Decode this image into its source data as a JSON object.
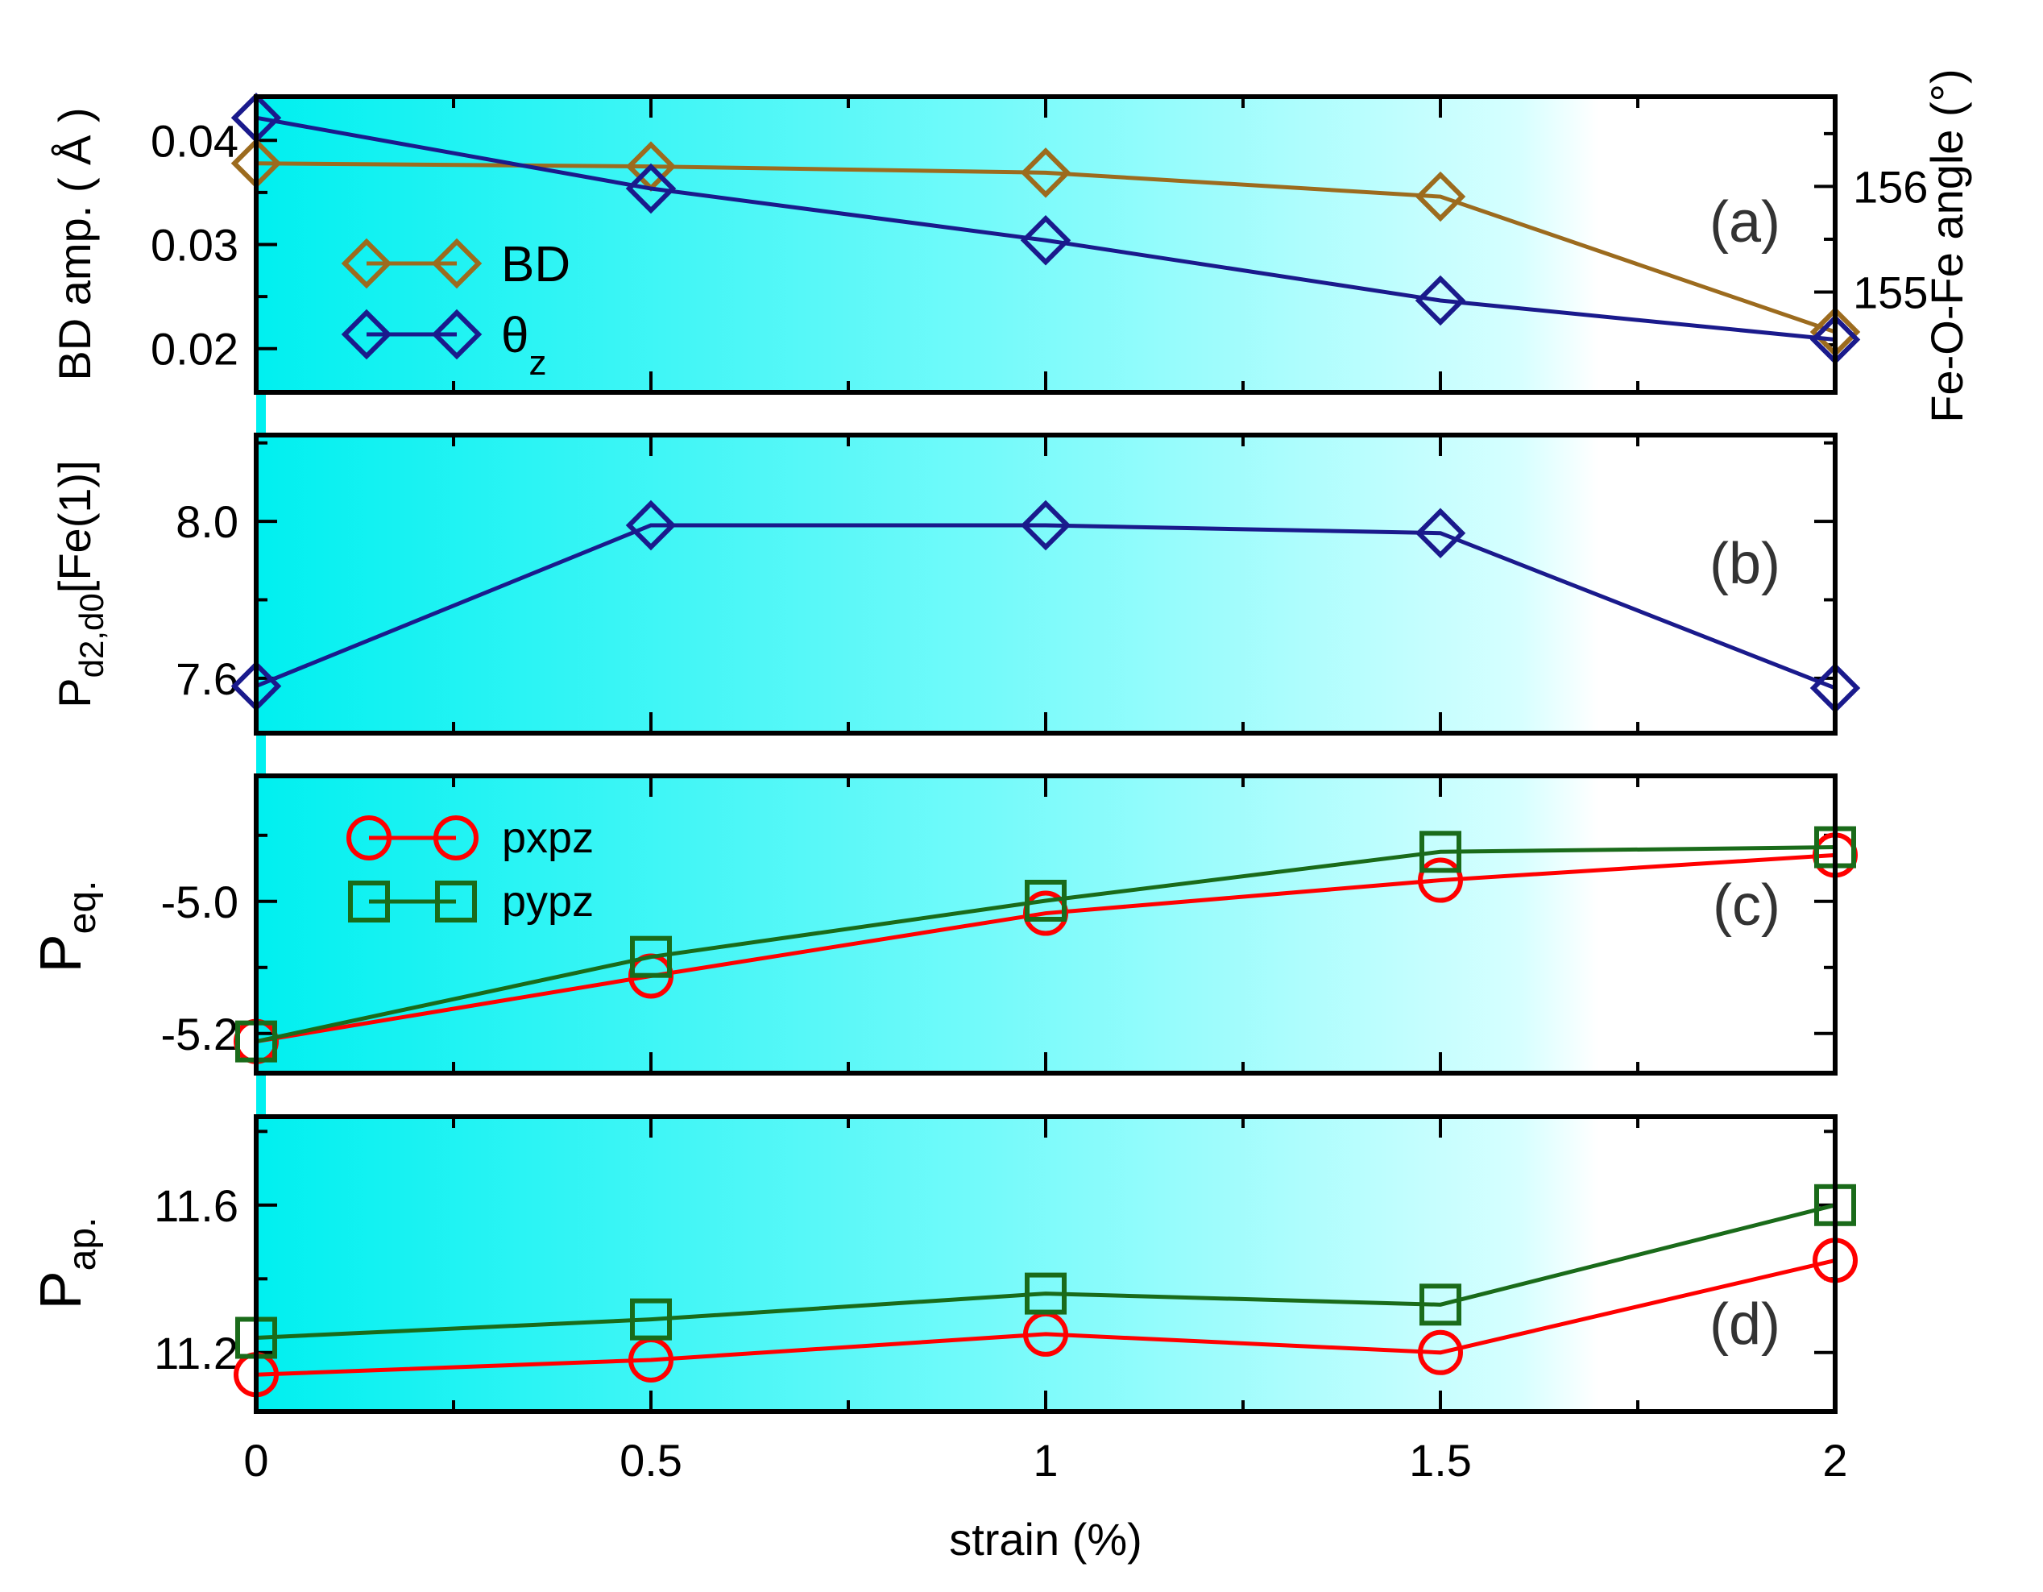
{
  "chart_data": [
    {
      "panel": "(a)",
      "type": "line",
      "x": [
        0,
        0.5,
        1,
        1.5,
        2
      ],
      "xlim": [
        0,
        2
      ],
      "ylabel": "BD amp. ( Å )",
      "ylim": [
        0.0158,
        0.0442
      ],
      "yticks": [
        "0.02",
        "0.03",
        "0.04"
      ],
      "ytick_values": [
        0.02,
        0.03,
        0.04
      ],
      "y2label": "Fe-O-Fe angle (°)",
      "y2lim": [
        154.05,
        156.85
      ],
      "y2ticks": [
        "155",
        "156"
      ],
      "y2tick_values": [
        155,
        156
      ],
      "series": [
        {
          "name": "BD",
          "legend": "BD",
          "axis": "left",
          "marker": "diamond",
          "color": "#9c6b1e",
          "values": [
            0.0378,
            0.0375,
            0.0369,
            0.0346,
            0.0216
          ]
        },
        {
          "name": "θz",
          "legend_main": "θ",
          "legend_sub": "z",
          "axis": "right",
          "marker": "diamond",
          "color": "#1a1a8c",
          "values": [
            156.65,
            155.98,
            155.49,
            154.92,
            154.55
          ]
        }
      ]
    },
    {
      "panel": "(b)",
      "type": "line",
      "x": [
        0,
        0.5,
        1,
        1.5,
        2
      ],
      "xlim": [
        0,
        2
      ],
      "ylabel_main": "P",
      "ylabel_sub": "d2,d0",
      "ylabel_tail": "[Fe(1)]",
      "ylim": [
        7.46,
        8.22
      ],
      "yticks": [
        "7.6",
        "8.0"
      ],
      "ytick_values": [
        7.6,
        8.0
      ],
      "series": [
        {
          "name": "Pd2,d0[Fe(1)]",
          "marker": "diamond",
          "color": "#1a1a8c",
          "values": [
            7.58,
            7.99,
            7.99,
            7.97,
            7.575
          ]
        }
      ]
    },
    {
      "panel": "(c)",
      "type": "line",
      "x": [
        0,
        0.5,
        1,
        1.5,
        2
      ],
      "xlim": [
        0,
        2
      ],
      "ylabel_main": "P",
      "ylabel_sub": "eq.",
      "ylim": [
        -5.26,
        -4.81
      ],
      "yticks": [
        "-5.2",
        "-5.0"
      ],
      "ytick_values": [
        -5.2,
        -5.0
      ],
      "series": [
        {
          "name": "pxpz",
          "legend": "pxpz",
          "marker": "circle",
          "color": "#ff0000",
          "values": [
            -5.212,
            -5.113,
            -5.018,
            -4.968,
            -4.93
          ]
        },
        {
          "name": "pypz",
          "legend": "pypz",
          "marker": "square",
          "color": "#1a6b1a",
          "values": [
            -5.212,
            -5.084,
            -4.999,
            -4.925,
            -4.918
          ]
        }
      ]
    },
    {
      "panel": "(d)",
      "type": "line",
      "x": [
        0,
        0.5,
        1,
        1.5,
        2
      ],
      "xlim": [
        0,
        2
      ],
      "xlabel": "strain (%)",
      "xticks": [
        "0",
        "0.5",
        "1",
        "1.5",
        "2"
      ],
      "ylabel_main": "P",
      "ylabel_sub": "ap.",
      "ylim": [
        11.04,
        11.84
      ],
      "yticks": [
        "11.2",
        "11.6"
      ],
      "ytick_values": [
        11.2,
        11.6
      ],
      "series": [
        {
          "name": "pxpz",
          "marker": "circle",
          "color": "#ff0000",
          "values": [
            11.14,
            11.18,
            11.25,
            11.2,
            11.45
          ]
        },
        {
          "name": "pypz",
          "marker": "square",
          "color": "#1a6b1a",
          "values": [
            11.24,
            11.29,
            11.36,
            11.33,
            11.6
          ]
        }
      ]
    }
  ]
}
